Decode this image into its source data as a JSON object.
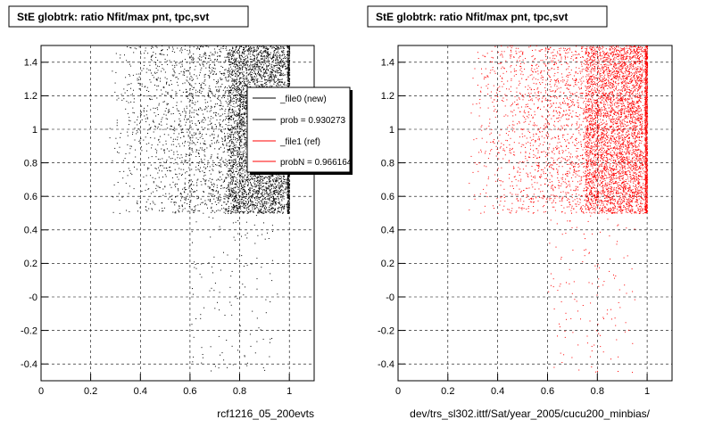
{
  "chart_data": [
    {
      "type": "scatter",
      "title": "StE globtrk: ratio Nfit/max pnt, tpc,svt",
      "xlabel": "rcf1216_05_200evts",
      "ylabel": "",
      "xlim": [
        0,
        1.1
      ],
      "ylim": [
        -0.5,
        1.5
      ],
      "x_ticks": [
        "0",
        "0.2",
        "0.4",
        "0.6",
        "0.8",
        "1"
      ],
      "y_ticks": [
        "-0.4",
        "-0.2",
        "-0",
        "0.2",
        "0.4",
        "0.6",
        "0.8",
        "1",
        "1.2",
        "1.4"
      ],
      "grid": true,
      "marker_color": "#000000",
      "legend": {
        "placement": "top-right",
        "entries": [
          {
            "label": "_file0 (new)",
            "color": "#000000"
          },
          {
            "label": "prob = 0.930273",
            "color": "#000000"
          },
          {
            "label": "_file1 (ref)",
            "color": "#ff0000"
          },
          {
            "label": "probN = 0.966164",
            "color": "#ff0000"
          }
        ]
      },
      "series": [
        {
          "dense_region": {
            "x_range": [
              0.27,
              1.0
            ],
            "y_range": [
              0.5,
              1.5
            ],
            "peak_x": [
              0.75,
              0.98
            ]
          },
          "sparse_region": {
            "x_range": [
              0.6,
              0.95
            ],
            "y_range": [
              -0.45,
              0.5
            ]
          }
        }
      ]
    },
    {
      "type": "scatter",
      "title": "StE globtrk: ratio Nfit/max pnt, tpc,svt",
      "xlabel": "dev/trs_sl302.ittf/Sat/year_2005/cucu200_minbias/",
      "ylabel": "",
      "xlim": [
        0,
        1.1
      ],
      "ylim": [
        -0.5,
        1.5
      ],
      "x_ticks": [
        "0",
        "0.2",
        "0.4",
        "0.6",
        "0.8",
        "1"
      ],
      "y_ticks": [
        "-0.4",
        "-0.2",
        "-0",
        "0.2",
        "0.4",
        "0.6",
        "0.8",
        "1",
        "1.2",
        "1.4"
      ],
      "grid": true,
      "marker_color": "#ff0000",
      "series": [
        {
          "dense_region": {
            "x_range": [
              0.27,
              1.0
            ],
            "y_range": [
              0.5,
              1.5
            ],
            "peak_x": [
              0.75,
              0.98
            ]
          },
          "sparse_region": {
            "x_range": [
              0.6,
              0.95
            ],
            "y_range": [
              -0.45,
              0.5
            ]
          }
        }
      ]
    }
  ]
}
